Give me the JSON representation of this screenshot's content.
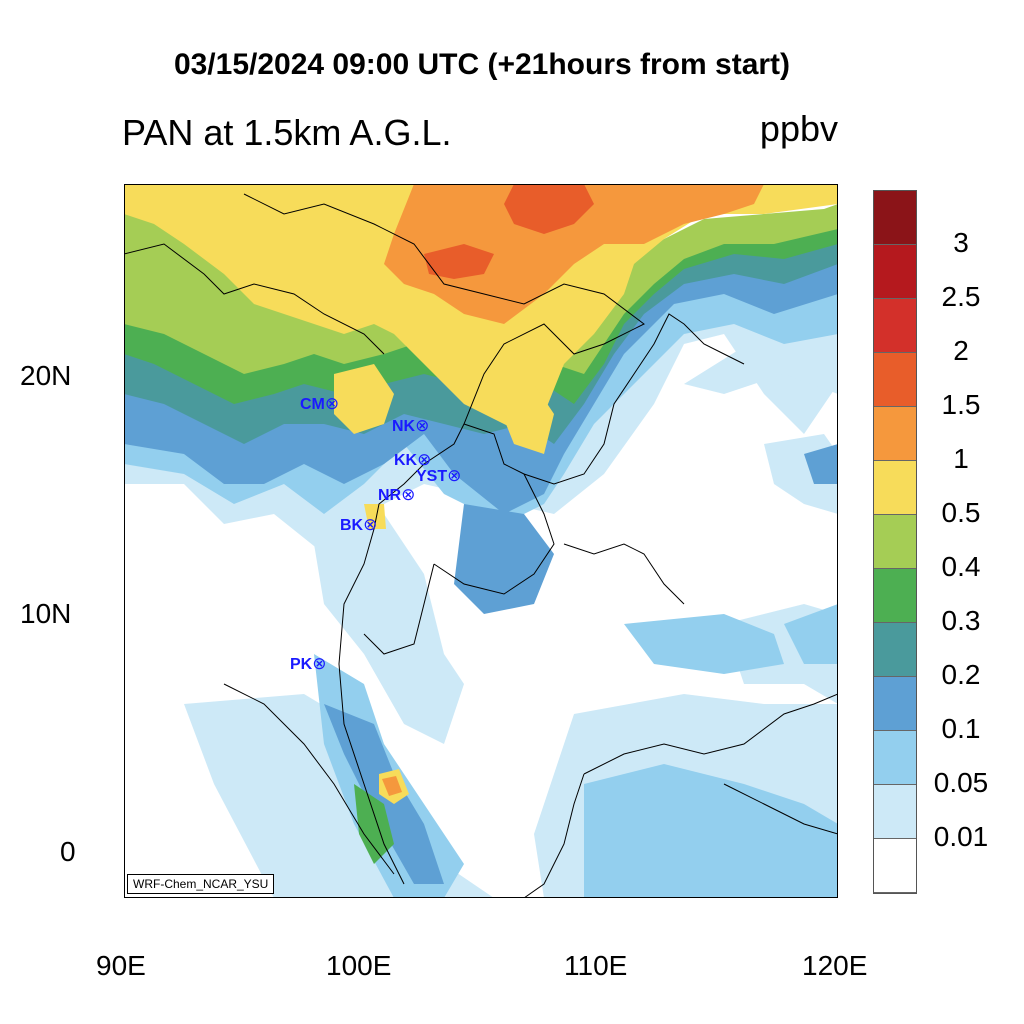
{
  "title": "03/15/2024 09:00 UTC (+21hours from start)",
  "left_title": "PAN at 1.5km A.G.L.",
  "units": "ppbv",
  "credit": "WRF-Chem_NCAR_YSU",
  "x_ticks": [
    "90E",
    "100E",
    "110E",
    "120E"
  ],
  "y_ticks": [
    "20N",
    "10N",
    "0"
  ],
  "colorbar": {
    "labels": [
      "3",
      "2.5",
      "2",
      "1.5",
      "1",
      "0.5",
      "0.4",
      "0.3",
      "0.2",
      "0.1",
      "0.05",
      "0.01"
    ],
    "colors": [
      "#ffffff",
      "#cde9f7",
      "#93cfee",
      "#5ea0d4",
      "#4a9a9c",
      "#4daf52",
      "#a5cd55",
      "#f7dc5a",
      "#f5983d",
      "#e85d2a",
      "#d3302a",
      "#b5191e",
      "#8b1418"
    ]
  },
  "stations": [
    {
      "name": "CM",
      "symbol": "⊗"
    },
    {
      "name": "NK",
      "symbol": "⊗"
    },
    {
      "name": "KK",
      "symbol": "⊗"
    },
    {
      "name": "YST",
      "symbol": "⊗"
    },
    {
      "name": "NR",
      "symbol": "⊗"
    },
    {
      "name": "BK",
      "symbol": "⊗"
    },
    {
      "name": "PK",
      "symbol": "⊗"
    }
  ]
}
